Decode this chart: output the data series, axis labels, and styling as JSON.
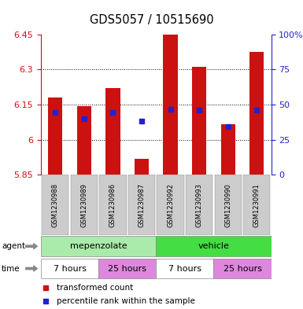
{
  "title": "GDS5057 / 10515690",
  "samples": [
    "GSM1230988",
    "GSM1230989",
    "GSM1230986",
    "GSM1230987",
    "GSM1230992",
    "GSM1230993",
    "GSM1230990",
    "GSM1230991"
  ],
  "bar_bottoms": [
    5.85,
    5.85,
    5.85,
    5.85,
    5.85,
    5.85,
    5.85,
    5.85
  ],
  "bar_tops": [
    6.18,
    6.145,
    6.22,
    5.92,
    6.46,
    6.31,
    6.065,
    6.375
  ],
  "blue_values": [
    6.115,
    6.09,
    6.115,
    6.08,
    6.13,
    6.125,
    6.055,
    6.125
  ],
  "ylim_min": 5.85,
  "ylim_max": 6.45,
  "yticks": [
    5.85,
    6.0,
    6.15,
    6.3,
    6.45
  ],
  "ytick_labels": [
    "5.85",
    "6",
    "6.15",
    "6.3",
    "6.45"
  ],
  "right_yticks": [
    0,
    25,
    50,
    75,
    100
  ],
  "right_ytick_labels": [
    "0",
    "25",
    "50",
    "75",
    "100%"
  ],
  "grid_yticks": [
    6.0,
    6.15,
    6.3
  ],
  "bar_color": "#cc1111",
  "blue_color": "#2222cc",
  "bar_width": 0.5,
  "agent_groups": [
    {
      "label": "mepenzolate",
      "start": 0,
      "end": 4,
      "color": "#aaeaaa"
    },
    {
      "label": "vehicle",
      "start": 4,
      "end": 8,
      "color": "#44dd44"
    }
  ],
  "time_groups": [
    {
      "label": "7 hours",
      "start": 0,
      "end": 2,
      "color": "#ffffff"
    },
    {
      "label": "25 hours",
      "start": 2,
      "end": 4,
      "color": "#dd88dd"
    },
    {
      "label": "7 hours",
      "start": 4,
      "end": 6,
      "color": "#ffffff"
    },
    {
      "label": "25 hours",
      "start": 6,
      "end": 8,
      "color": "#dd88dd"
    }
  ],
  "legend_items": [
    {
      "label": "transformed count",
      "color": "#cc1111"
    },
    {
      "label": "percentile rank within the sample",
      "color": "#2222cc"
    }
  ],
  "sample_bg_color": "#cccccc",
  "border_color": "#888888"
}
